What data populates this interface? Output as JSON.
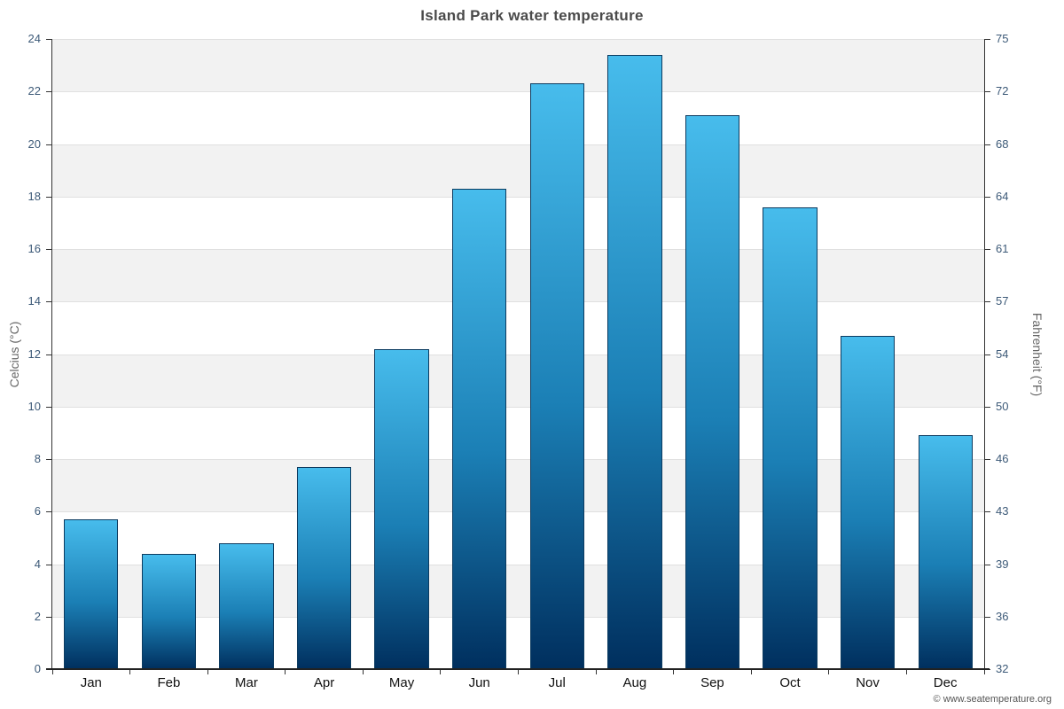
{
  "footer": {
    "copyright": "© www.seatemperature.org"
  },
  "chart_data": {
    "type": "bar",
    "title": "Island Park water temperature",
    "categories": [
      "Jan",
      "Feb",
      "Mar",
      "Apr",
      "May",
      "Jun",
      "Jul",
      "Aug",
      "Sep",
      "Oct",
      "Nov",
      "Dec"
    ],
    "values": [
      5.7,
      4.4,
      4.8,
      7.7,
      12.2,
      18.3,
      22.3,
      23.4,
      21.1,
      17.6,
      12.7,
      8.9
    ],
    "xlabel": "",
    "ylabel_left": "Celcius (°C)",
    "ylabel_right": "Fahrenheit (°F)",
    "ylim_left": [
      0,
      24
    ],
    "yticks_left": [
      0,
      2,
      4,
      6,
      8,
      10,
      12,
      14,
      16,
      18,
      20,
      22,
      24
    ],
    "yticks_right_labels": [
      "32",
      "36",
      "39",
      "43",
      "46",
      "50",
      "54",
      "57",
      "61",
      "64",
      "68",
      "72",
      "75"
    ],
    "grid": "alternating-horizontal-bands",
    "legend": "none",
    "colors": {
      "bar_top": "#47bcec",
      "bar_mid": "#1b7fb5",
      "bar_bottom": "#002f5e",
      "bar_border": "#0c3b60",
      "band": "#f2f2f2",
      "grid": "#e0e0e0",
      "axis": "#333333",
      "tick_label": "#3d5a78",
      "month_label": "#111111",
      "title": "#4a4a4a"
    }
  }
}
